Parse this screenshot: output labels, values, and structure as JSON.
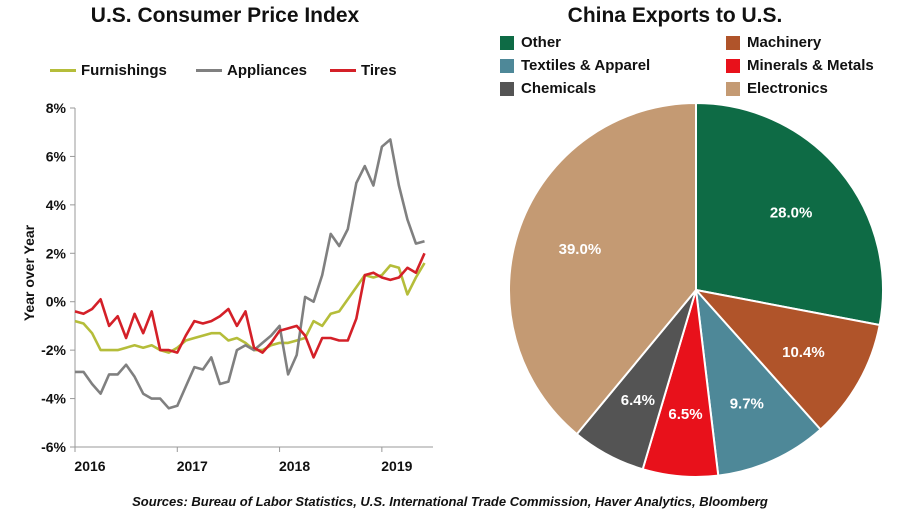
{
  "chart_data": [
    {
      "type": "line",
      "title": "U.S. Consumer Price Index",
      "ylabel": "Year over Year",
      "xlabel": "",
      "x_ticks": [
        "2016",
        "2017",
        "2018",
        "2019"
      ],
      "y_ticks": [
        "8%",
        "6%",
        "4%",
        "2%",
        "0%",
        "-2%",
        "-4%",
        "-6%"
      ],
      "ylim": [
        -6,
        8
      ],
      "xlim": [
        2016,
        2019.5
      ],
      "legend_position": "top",
      "grid": false,
      "series": [
        {
          "name": "Furnishings",
          "color": "#b5bd3a",
          "x": [
            2016.0,
            2016.083,
            2016.167,
            2016.25,
            2016.333,
            2016.417,
            2016.5,
            2016.583,
            2016.667,
            2016.75,
            2016.833,
            2016.917,
            2017.0,
            2017.083,
            2017.167,
            2017.25,
            2017.333,
            2017.417,
            2017.5,
            2017.583,
            2017.667,
            2017.75,
            2017.833,
            2017.917,
            2018.0,
            2018.083,
            2018.167,
            2018.25,
            2018.333,
            2018.417,
            2018.5,
            2018.583,
            2018.667,
            2018.75,
            2018.833,
            2018.917,
            2019.0,
            2019.083,
            2019.167,
            2019.25,
            2019.333,
            2019.417
          ],
          "values": [
            -0.8,
            -0.9,
            -1.3,
            -2.0,
            -2.0,
            -2.0,
            -1.9,
            -1.8,
            -1.9,
            -1.8,
            -2.0,
            -2.1,
            -1.9,
            -1.6,
            -1.5,
            -1.4,
            -1.3,
            -1.3,
            -1.6,
            -1.5,
            -1.7,
            -2.0,
            -2.0,
            -1.8,
            -1.7,
            -1.7,
            -1.6,
            -1.5,
            -0.8,
            -1.0,
            -0.5,
            -0.4,
            0.1,
            0.6,
            1.1,
            1.0,
            1.1,
            1.5,
            1.4,
            0.3,
            1.0,
            1.6
          ]
        },
        {
          "name": "Appliances",
          "color": "#808080",
          "x": [
            2016.0,
            2016.083,
            2016.167,
            2016.25,
            2016.333,
            2016.417,
            2016.5,
            2016.583,
            2016.667,
            2016.75,
            2016.833,
            2016.917,
            2017.0,
            2017.083,
            2017.167,
            2017.25,
            2017.333,
            2017.417,
            2017.5,
            2017.583,
            2017.667,
            2017.75,
            2017.833,
            2017.917,
            2018.0,
            2018.083,
            2018.167,
            2018.25,
            2018.333,
            2018.417,
            2018.5,
            2018.583,
            2018.667,
            2018.75,
            2018.833,
            2018.917,
            2019.0,
            2019.083,
            2019.167,
            2019.25,
            2019.333,
            2019.417
          ],
          "values": [
            -2.9,
            -2.9,
            -3.4,
            -3.8,
            -3.0,
            -3.0,
            -2.6,
            -3.1,
            -3.8,
            -4.0,
            -4.0,
            -4.4,
            -4.3,
            -3.5,
            -2.7,
            -2.8,
            -2.3,
            -3.4,
            -3.3,
            -2.0,
            -1.8,
            -2.0,
            -1.7,
            -1.4,
            -1.0,
            -3.0,
            -2.2,
            0.2,
            0.0,
            1.1,
            2.8,
            2.3,
            3.0,
            4.9,
            5.6,
            4.8,
            6.4,
            6.7,
            4.8,
            3.4,
            2.4,
            2.5
          ]
        },
        {
          "name": "Tires",
          "color": "#d42028",
          "x": [
            2016.0,
            2016.083,
            2016.167,
            2016.25,
            2016.333,
            2016.417,
            2016.5,
            2016.583,
            2016.667,
            2016.75,
            2016.833,
            2016.917,
            2017.0,
            2017.083,
            2017.167,
            2017.25,
            2017.333,
            2017.417,
            2017.5,
            2017.583,
            2017.667,
            2017.75,
            2017.833,
            2017.917,
            2018.0,
            2018.083,
            2018.167,
            2018.25,
            2018.333,
            2018.417,
            2018.5,
            2018.583,
            2018.667,
            2018.75,
            2018.833,
            2018.917,
            2019.0,
            2019.083,
            2019.167,
            2019.25,
            2019.333,
            2019.417
          ],
          "values": [
            -0.4,
            -0.5,
            -0.3,
            0.1,
            -1.0,
            -0.6,
            -1.5,
            -0.5,
            -1.3,
            -0.4,
            -2.0,
            -2.0,
            -2.1,
            -1.4,
            -0.8,
            -0.9,
            -0.8,
            -0.6,
            -0.3,
            -1.0,
            -0.4,
            -1.9,
            -2.1,
            -1.7,
            -1.2,
            -1.1,
            -1.0,
            -1.4,
            -2.3,
            -1.5,
            -1.5,
            -1.6,
            -1.6,
            -0.7,
            1.1,
            1.2,
            1.0,
            0.9,
            1.0,
            1.4,
            1.2,
            2.0
          ]
        }
      ]
    },
    {
      "type": "pie",
      "title": "China Exports to U.S.",
      "legend_position": "top",
      "slices": [
        {
          "name": "Other",
          "value": 28.0,
          "label": "28.0%",
          "color": "#0e6b45"
        },
        {
          "name": "Machinery",
          "value": 10.4,
          "label": "10.4%",
          "color": "#b0542a"
        },
        {
          "name": "Textiles & Apparel",
          "value": 9.7,
          "label": "9.7%",
          "color": "#4e8898"
        },
        {
          "name": "Minerals & Metals",
          "value": 6.5,
          "label": "6.5%",
          "color": "#e8111b"
        },
        {
          "name": "Chemicals",
          "value": 6.4,
          "label": "6.4%",
          "color": "#545454"
        },
        {
          "name": "Electronics",
          "value": 39.0,
          "label": "39.0%",
          "color": "#c49a73"
        }
      ],
      "legend_order": [
        "Other",
        "Machinery",
        "Textiles & Apparel",
        "Minerals & Metals",
        "Chemicals",
        "Electronics"
      ]
    }
  ],
  "sources": "Sources: Bureau of Labor Statistics, U.S. International Trade Commission, Haver Analytics, Bloomberg"
}
